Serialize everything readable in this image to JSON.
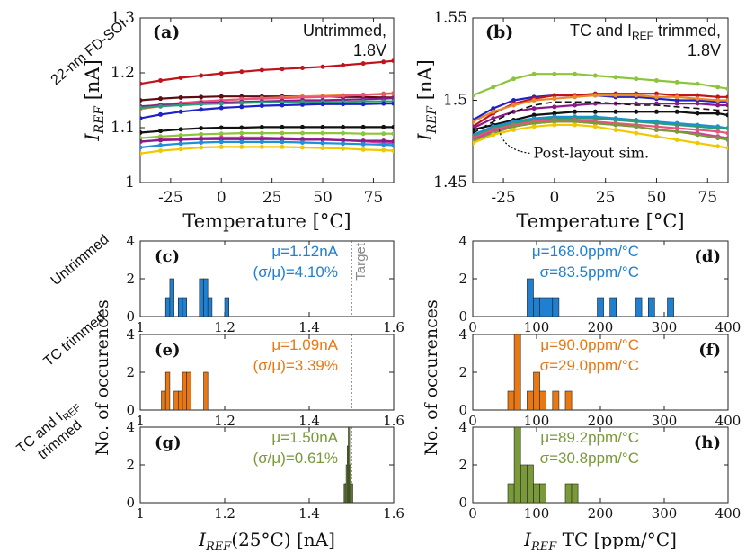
{
  "side_labels": {
    "row0": "22-nm FD-SOI",
    "row1": "Untrimmed",
    "row2": "TC trimmed",
    "row3_main": "TC and I",
    "row3_sub": "REF",
    "row3_line2": "trimmed"
  },
  "chart_data": [
    {
      "id": "a",
      "type": "line",
      "panel_label": "(a)",
      "title": "Untrimmed,",
      "title_line2": "1.8V",
      "xlabel": "Temperature [°C]",
      "ylabel_main": "I",
      "ylabel_sub": "REF",
      "ylabel_unit": " [nA]",
      "xlim": [
        -40,
        85
      ],
      "ylim": [
        1.0,
        1.3
      ],
      "xticks": [
        -25,
        0,
        25,
        50,
        75
      ],
      "yticks": [
        1,
        1.1,
        1.2,
        1.3
      ],
      "x": [
        -40,
        -30,
        -20,
        -10,
        0,
        10,
        20,
        30,
        40,
        50,
        60,
        70,
        80,
        85
      ],
      "series": [
        {
          "color": "#c0141c",
          "values": [
            1.18,
            1.186,
            1.191,
            1.195,
            1.199,
            1.202,
            1.205,
            1.207,
            1.209,
            1.211,
            1.214,
            1.217,
            1.22,
            1.222
          ]
        },
        {
          "color": "#5a0d12",
          "values": [
            1.15,
            1.153,
            1.155,
            1.156,
            1.157,
            1.157,
            1.157,
            1.157,
            1.157,
            1.157,
            1.156,
            1.156,
            1.155,
            1.155
          ]
        },
        {
          "color": "#e88a2a",
          "values": [
            1.134,
            1.139,
            1.143,
            1.147,
            1.15,
            1.152,
            1.154,
            1.155,
            1.157,
            1.158,
            1.159,
            1.16,
            1.161,
            1.162
          ]
        },
        {
          "color": "#e8557a",
          "values": [
            1.138,
            1.142,
            1.145,
            1.148,
            1.15,
            1.152,
            1.153,
            1.154,
            1.155,
            1.156,
            1.158,
            1.16,
            1.162,
            1.163
          ]
        },
        {
          "color": "#8a1a8a",
          "values": [
            1.139,
            1.141,
            1.143,
            1.145,
            1.146,
            1.147,
            1.148,
            1.149,
            1.15,
            1.15,
            1.151,
            1.152,
            1.153,
            1.154
          ]
        },
        {
          "color": "#2a9d7a",
          "values": [
            1.136,
            1.139,
            1.141,
            1.143,
            1.144,
            1.145,
            1.146,
            1.146,
            1.147,
            1.147,
            1.147,
            1.148,
            1.148,
            1.148
          ]
        },
        {
          "color": "#2020c8",
          "values": [
            1.117,
            1.124,
            1.129,
            1.133,
            1.136,
            1.138,
            1.14,
            1.141,
            1.142,
            1.143,
            1.143,
            1.143,
            1.144,
            1.144
          ]
        },
        {
          "color": "#111111",
          "values": [
            1.091,
            1.094,
            1.097,
            1.099,
            1.1,
            1.1,
            1.101,
            1.101,
            1.101,
            1.101,
            1.101,
            1.101,
            1.101,
            1.101
          ]
        },
        {
          "color": "#8cc43c",
          "values": [
            1.081,
            1.084,
            1.086,
            1.088,
            1.089,
            1.09,
            1.09,
            1.09,
            1.09,
            1.09,
            1.09,
            1.089,
            1.089,
            1.089
          ]
        },
        {
          "color": "#d040a0",
          "values": [
            1.074,
            1.078,
            1.08,
            1.081,
            1.082,
            1.082,
            1.082,
            1.081,
            1.08,
            1.079,
            1.077,
            1.075,
            1.073,
            1.072
          ]
        },
        {
          "color": "#8a1a8a",
          "values": [
            1.075,
            1.077,
            1.078,
            1.079,
            1.079,
            1.079,
            1.079,
            1.079,
            1.078,
            1.078,
            1.077,
            1.076,
            1.076,
            1.075
          ]
        },
        {
          "color": "#1f8fd8",
          "values": [
            1.064,
            1.068,
            1.071,
            1.073,
            1.074,
            1.074,
            1.074,
            1.074,
            1.073,
            1.072,
            1.071,
            1.07,
            1.069,
            1.068
          ]
        },
        {
          "color": "#f0c800",
          "values": [
            1.053,
            1.058,
            1.061,
            1.064,
            1.065,
            1.065,
            1.065,
            1.065,
            1.064,
            1.063,
            1.062,
            1.06,
            1.059,
            1.058
          ]
        }
      ]
    },
    {
      "id": "b",
      "type": "line",
      "panel_label": "(b)",
      "title_main": "TC and I",
      "title_sub": "REF",
      "title_rest": " trimmed,",
      "title_line2": "1.8V",
      "xlabel": "Temperature [°C]",
      "ylabel_main": "I",
      "ylabel_sub": "REF",
      "ylabel_unit": " [nA]",
      "annotation": "Post-layout sim.",
      "xlim": [
        -40,
        85
      ],
      "ylim": [
        1.45,
        1.55
      ],
      "xticks": [
        -25,
        0,
        25,
        50,
        75
      ],
      "yticks": [
        1.45,
        1.5,
        1.55
      ],
      "x": [
        -40,
        -30,
        -20,
        -10,
        0,
        10,
        20,
        30,
        40,
        50,
        60,
        70,
        80,
        85
      ],
      "series": [
        {
          "color": "#8cc43c",
          "values": [
            1.503,
            1.508,
            1.513,
            1.516,
            1.516,
            1.516,
            1.515,
            1.514,
            1.513,
            1.512,
            1.511,
            1.51,
            1.508,
            1.507
          ]
        },
        {
          "color": "#2020c8",
          "values": [
            1.488,
            1.495,
            1.5,
            1.502,
            1.503,
            1.503,
            1.503,
            1.502,
            1.502,
            1.501,
            1.5,
            1.5,
            1.499,
            1.499
          ]
        },
        {
          "color": "#c0141c",
          "values": [
            1.484,
            1.492,
            1.498,
            1.501,
            1.503,
            1.503,
            1.504,
            1.504,
            1.504,
            1.504,
            1.503,
            1.503,
            1.502,
            1.502
          ]
        },
        {
          "color": "#e88a2a",
          "values": [
            1.487,
            1.493,
            1.497,
            1.5,
            1.501,
            1.502,
            1.503,
            1.503,
            1.503,
            1.502,
            1.502,
            1.501,
            1.5,
            1.5
          ]
        },
        {
          "color": "#8a1a8a",
          "values": [
            1.483,
            1.489,
            1.493,
            1.495,
            1.496,
            1.497,
            1.498,
            1.498,
            1.498,
            1.498,
            1.498,
            1.498,
            1.497,
            1.497
          ]
        },
        {
          "color": "#111111",
          "values": [
            1.482,
            1.485,
            1.488,
            1.491,
            1.492,
            1.493,
            1.493,
            1.493,
            1.493,
            1.493,
            1.493,
            1.492,
            1.492,
            1.491
          ]
        },
        {
          "color": "#1f8fd8",
          "values": [
            1.479,
            1.484,
            1.487,
            1.489,
            1.49,
            1.49,
            1.49,
            1.489,
            1.488,
            1.487,
            1.486,
            1.485,
            1.484,
            1.483
          ]
        },
        {
          "color": "#2a9d7a",
          "values": [
            1.478,
            1.483,
            1.486,
            1.488,
            1.489,
            1.489,
            1.489,
            1.488,
            1.487,
            1.486,
            1.485,
            1.484,
            1.483,
            1.483
          ]
        },
        {
          "color": "#e8557a",
          "values": [
            1.477,
            1.482,
            1.485,
            1.487,
            1.488,
            1.488,
            1.487,
            1.486,
            1.485,
            1.484,
            1.483,
            1.482,
            1.481,
            1.48
          ]
        },
        {
          "color": "#d040a0",
          "values": [
            1.476,
            1.481,
            1.484,
            1.486,
            1.487,
            1.487,
            1.486,
            1.485,
            1.484,
            1.482,
            1.481,
            1.48,
            1.478,
            1.477
          ]
        },
        {
          "color": "#7a9a3a",
          "values": [
            1.475,
            1.48,
            1.484,
            1.486,
            1.487,
            1.487,
            1.486,
            1.485,
            1.484,
            1.482,
            1.481,
            1.479,
            1.477,
            1.476
          ]
        },
        {
          "color": "#f0c800",
          "values": [
            1.474,
            1.479,
            1.482,
            1.484,
            1.485,
            1.485,
            1.484,
            1.482,
            1.48,
            1.478,
            1.476,
            1.474,
            1.472,
            1.471
          ]
        },
        {
          "color": "#5a0d12",
          "dashed": true,
          "values": [
            1.48,
            1.487,
            1.493,
            1.497,
            1.499,
            1.499,
            1.499,
            1.498,
            1.497,
            1.497,
            1.496,
            1.495,
            1.494,
            1.494
          ]
        }
      ]
    },
    {
      "id": "c",
      "type": "bar",
      "panel_label": "(c)",
      "color": "#1f7fd0",
      "stat1": "μ=1.12nA",
      "stat2": "(σ/μ)=4.10%",
      "target_label": "Target",
      "target_x": 1.5,
      "xlim": [
        1.0,
        1.6
      ],
      "ylim": [
        0,
        4
      ],
      "xticks": [
        1,
        1.2,
        1.4,
        1.6
      ],
      "yticks": [
        0,
        2,
        4
      ],
      "bin_width": 0.01,
      "bins": [
        [
          1.06,
          1
        ],
        [
          1.07,
          2
        ],
        [
          1.09,
          1
        ],
        [
          1.1,
          1
        ],
        [
          1.14,
          2
        ],
        [
          1.15,
          2
        ],
        [
          1.16,
          1
        ],
        [
          1.2,
          1
        ]
      ]
    },
    {
      "id": "d",
      "type": "bar",
      "panel_label": "(d)",
      "color": "#1f7fd0",
      "stat1": "μ=168.0ppm/°C",
      "stat2": "σ=83.5ppm/°C",
      "xlim": [
        0,
        400
      ],
      "ylim": [
        0,
        4
      ],
      "xticks": [
        0,
        100,
        200,
        300,
        400
      ],
      "yticks": [
        0,
        2,
        4
      ],
      "bin_width": 10,
      "bins": [
        [
          85,
          2
        ],
        [
          95,
          1
        ],
        [
          105,
          1
        ],
        [
          115,
          1
        ],
        [
          125,
          1
        ],
        [
          195,
          1
        ],
        [
          215,
          1
        ],
        [
          255,
          1
        ],
        [
          275,
          1
        ],
        [
          305,
          1
        ]
      ]
    },
    {
      "id": "e",
      "type": "bar",
      "panel_label": "(e)",
      "color": "#e87814",
      "stat1": "μ=1.09nA",
      "stat2": "(σ/μ)=3.39%",
      "target_x": 1.5,
      "xlim": [
        1.0,
        1.6
      ],
      "ylim": [
        0,
        4
      ],
      "xticks": [
        1,
        1.2,
        1.4,
        1.6
      ],
      "yticks": [
        0,
        2,
        4
      ],
      "bin_width": 0.01,
      "bins": [
        [
          1.05,
          1
        ],
        [
          1.06,
          2
        ],
        [
          1.08,
          1
        ],
        [
          1.09,
          1
        ],
        [
          1.1,
          2
        ],
        [
          1.11,
          2
        ],
        [
          1.15,
          2
        ]
      ]
    },
    {
      "id": "f",
      "type": "bar",
      "panel_label": "(f)",
      "color": "#e87814",
      "stat1": "μ=90.0ppm/°C",
      "stat2": "σ=29.0ppm/°C",
      "xlim": [
        0,
        400
      ],
      "ylim": [
        0,
        4
      ],
      "xticks": [
        0,
        100,
        200,
        300,
        400
      ],
      "yticks": [
        0,
        2,
        4
      ],
      "bin_width": 10,
      "bins": [
        [
          55,
          1
        ],
        [
          65,
          4
        ],
        [
          85,
          1
        ],
        [
          95,
          2
        ],
        [
          105,
          1
        ],
        [
          125,
          1
        ],
        [
          145,
          1
        ]
      ]
    },
    {
      "id": "g",
      "type": "bar",
      "panel_label": "(g)",
      "color": "#7a9a3a",
      "stat1": "μ=1.50nA",
      "stat2": "(σ/μ)=0.61%",
      "target_x": 1.5,
      "xlabel_main": "I",
      "xlabel_sub": "REF",
      "xlabel_rest": "(25°C) [nA]",
      "xlim": [
        1.0,
        1.6
      ],
      "ylim": [
        0,
        4
      ],
      "xticks": [
        1,
        1.2,
        1.4,
        1.6
      ],
      "yticks": [
        0,
        2,
        4
      ],
      "bin_width": 0.0025,
      "bins": [
        [
          1.4825,
          1
        ],
        [
          1.485,
          1
        ],
        [
          1.4875,
          2
        ],
        [
          1.49,
          3
        ],
        [
          1.4925,
          4
        ],
        [
          1.495,
          2
        ],
        [
          1.4975,
          1
        ],
        [
          1.5,
          1
        ]
      ]
    },
    {
      "id": "h",
      "type": "bar",
      "panel_label": "(h)",
      "color": "#7a9a3a",
      "stat1": "μ=89.2ppm/°C",
      "stat2": "σ=30.8ppm/°C",
      "xlabel_main": "I",
      "xlabel_sub": "REF",
      "xlabel_rest": " TC [ppm/°C]",
      "xlim": [
        0,
        400
      ],
      "ylim": [
        0,
        4
      ],
      "xticks": [
        0,
        100,
        200,
        300,
        400
      ],
      "yticks": [
        0,
        2,
        4
      ],
      "bin_width": 10,
      "bins": [
        [
          55,
          1
        ],
        [
          65,
          4
        ],
        [
          75,
          2
        ],
        [
          85,
          2
        ],
        [
          95,
          1
        ],
        [
          105,
          1
        ],
        [
          145,
          1
        ],
        [
          155,
          1
        ]
      ]
    }
  ],
  "shared_labels": {
    "hist_ylabel": "No. of occurences"
  }
}
